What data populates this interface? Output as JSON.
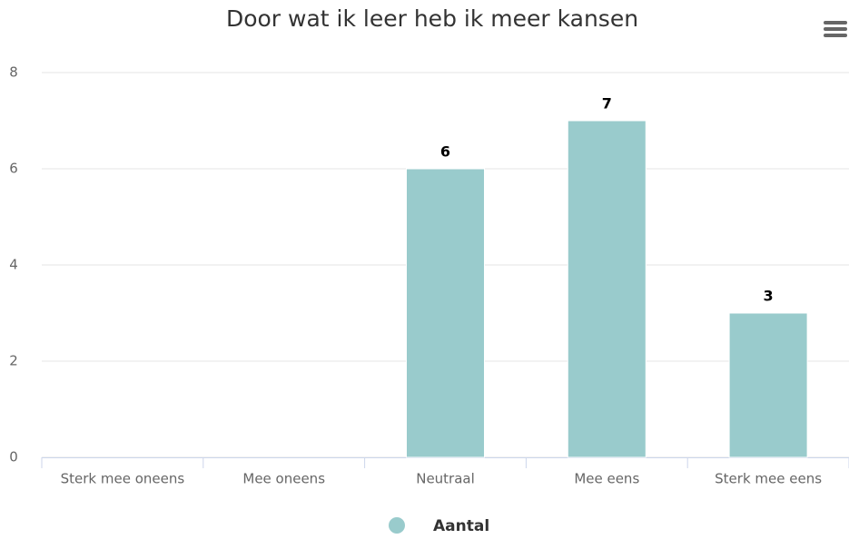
{
  "chart_data": {
    "type": "bar",
    "title": "Door wat ik leer heb ik meer kansen",
    "categories": [
      "Sterk mee oneens",
      "Mee oneens",
      "Neutraal",
      "Mee eens",
      "Sterk mee eens"
    ],
    "series": [
      {
        "name": "Aantal",
        "color": "#99cbcc",
        "values": [
          null,
          null,
          6,
          7,
          3
        ]
      }
    ],
    "ylim": [
      0,
      8
    ],
    "yticks": [
      0,
      2,
      4,
      6,
      8
    ],
    "grid": true,
    "legend": "bottom"
  }
}
